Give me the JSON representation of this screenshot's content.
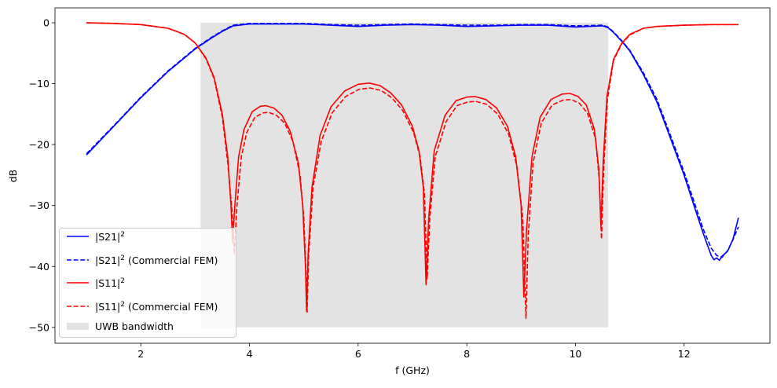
{
  "chart_data": {
    "type": "line",
    "title": "",
    "xlabel": "f (GHz)",
    "ylabel": "dB",
    "xlim": [
      0.42,
      13.58
    ],
    "ylim": [
      -52.6,
      2.45
    ],
    "xticks": [
      2,
      4,
      6,
      8,
      10,
      12
    ],
    "yticks": [
      0,
      -10,
      -20,
      -30,
      -40,
      -50
    ],
    "grid": false,
    "legend_placement": "lower-left",
    "shaded_region": {
      "name": "UWB bandwidth",
      "x": [
        3.1,
        10.6
      ],
      "y": [
        -50,
        0
      ],
      "color": "#e3e3e3"
    },
    "series": [
      {
        "name": "|S21|",
        "sup": "2",
        "color": "#0000ff",
        "style": "solid",
        "x": [
          1,
          1.5,
          2,
          2.5,
          3,
          3.3,
          3.5,
          3.7,
          4,
          4.5,
          5,
          5.5,
          6,
          6.5,
          7,
          7.5,
          8,
          8.5,
          9,
          9.5,
          10,
          10.5,
          10.6,
          10.7,
          10.85,
          11,
          11.25,
          11.5,
          11.75,
          12,
          12.2,
          12.35,
          12.5,
          12.55,
          12.6,
          12.65,
          12.7,
          12.8,
          12.9,
          13
        ],
        "y": [
          -21.7,
          -17,
          -12.3,
          -8,
          -4.3,
          -2.5,
          -1.4,
          -0.5,
          -0.2,
          -0.2,
          -0.2,
          -0.4,
          -0.6,
          -0.4,
          -0.3,
          -0.4,
          -0.6,
          -0.5,
          -0.4,
          -0.4,
          -0.7,
          -0.5,
          -0.8,
          -1.6,
          -3,
          -4.6,
          -8.5,
          -13,
          -19,
          -25,
          -30.5,
          -34.5,
          -38.2,
          -38.9,
          -38.6,
          -39,
          -38.3,
          -37.5,
          -35.5,
          -32
        ]
      },
      {
        "name": "|S21|",
        "sup": "2",
        "suffix": " (Commercial FEM)",
        "color": "#0000ff",
        "style": "dashed",
        "x": [
          1,
          1.5,
          2,
          2.5,
          3,
          3.3,
          3.5,
          3.7,
          4,
          4.5,
          5,
          5.5,
          6,
          6.5,
          7,
          7.5,
          8,
          8.5,
          9,
          9.5,
          10,
          10.5,
          10.6,
          10.7,
          10.85,
          11,
          11.25,
          11.5,
          11.75,
          12,
          12.2,
          12.35,
          12.5,
          12.6,
          12.7,
          12.8,
          12.9,
          13
        ],
        "y": [
          -21.5,
          -16.9,
          -12.2,
          -7.9,
          -4.2,
          -2.4,
          -1.3,
          -0.4,
          -0.1,
          -0.1,
          -0.1,
          -0.3,
          -0.4,
          -0.3,
          -0.2,
          -0.3,
          -0.4,
          -0.4,
          -0.3,
          -0.3,
          -0.5,
          -0.4,
          -0.7,
          -1.5,
          -2.9,
          -4.5,
          -8.2,
          -12.6,
          -18.5,
          -24.5,
          -29.8,
          -33.8,
          -37,
          -38.2,
          -38.5,
          -37.4,
          -35.6,
          -33.5
        ]
      },
      {
        "name": "|S11|",
        "sup": "2",
        "color": "#ff0000",
        "style": "solid",
        "x": [
          1,
          1.5,
          2,
          2.5,
          2.8,
          3,
          3.2,
          3.35,
          3.5,
          3.6,
          3.66,
          3.69,
          3.73,
          3.8,
          3.9,
          4.05,
          4.2,
          4.3,
          4.45,
          4.6,
          4.75,
          4.9,
          4.98,
          5.03,
          5.05,
          5.08,
          5.15,
          5.3,
          5.5,
          5.75,
          6,
          6.2,
          6.4,
          6.6,
          6.8,
          7,
          7.12,
          7.2,
          7.25,
          7.3,
          7.4,
          7.6,
          7.8,
          8,
          8.15,
          8.35,
          8.55,
          8.75,
          8.9,
          9.0,
          9.05,
          9.1,
          9.2,
          9.35,
          9.55,
          9.75,
          9.9,
          10.05,
          10.2,
          10.35,
          10.43,
          10.47,
          10.51,
          10.58,
          10.7,
          10.85,
          11,
          11.25,
          11.5,
          12,
          12.5,
          13
        ],
        "y": [
          0,
          -0.1,
          -0.3,
          -0.9,
          -1.9,
          -3.3,
          -5.8,
          -9,
          -15,
          -22,
          -30,
          -36,
          -30,
          -22,
          -17.5,
          -14.6,
          -13.7,
          -13.6,
          -14,
          -15.2,
          -17.8,
          -23,
          -30,
          -40,
          -47.3,
          -38,
          -27,
          -18.5,
          -13.8,
          -11.2,
          -10.1,
          -9.9,
          -10.3,
          -11.5,
          -13.5,
          -17,
          -21,
          -27,
          -43,
          -32,
          -21,
          -15.2,
          -12.8,
          -12.2,
          -12.1,
          -12.6,
          -14,
          -17,
          -22,
          -30,
          -45,
          -34,
          -22,
          -15.5,
          -12.6,
          -11.7,
          -11.6,
          -12.1,
          -13.5,
          -17.5,
          -24,
          -33.5,
          -23,
          -12,
          -6,
          -3.4,
          -1.9,
          -0.9,
          -0.6,
          -0.4,
          -0.3,
          -0.3
        ]
      },
      {
        "name": "|S11|",
        "sup": "2",
        "suffix": " (Commercial FEM)",
        "color": "#ff0000",
        "style": "dashed",
        "x": [
          1,
          1.5,
          2,
          2.5,
          2.8,
          3,
          3.2,
          3.35,
          3.5,
          3.6,
          3.68,
          3.72,
          3.77,
          3.85,
          3.95,
          4.1,
          4.25,
          4.35,
          4.5,
          4.65,
          4.8,
          4.93,
          5.0,
          5.04,
          5.06,
          5.09,
          5.17,
          5.32,
          5.52,
          5.77,
          6.02,
          6.22,
          6.42,
          6.62,
          6.82,
          7.02,
          7.14,
          7.22,
          7.27,
          7.32,
          7.42,
          7.62,
          7.82,
          8.02,
          8.17,
          8.37,
          8.57,
          8.77,
          8.92,
          9.03,
          9.09,
          9.13,
          9.22,
          9.37,
          9.57,
          9.77,
          9.92,
          10.07,
          10.22,
          10.37,
          10.44,
          10.48,
          10.52,
          10.59,
          10.7,
          10.85,
          11,
          11.25,
          11.5,
          12,
          12.5,
          13
        ],
        "y": [
          0,
          -0.1,
          -0.3,
          -0.9,
          -1.9,
          -3.3,
          -5.9,
          -9.2,
          -15.5,
          -23,
          -31,
          -38,
          -30,
          -22,
          -18,
          -15.5,
          -14.8,
          -14.7,
          -15.2,
          -16.5,
          -19.5,
          -25,
          -32,
          -41,
          -47.5,
          -38,
          -27,
          -19.5,
          -14.8,
          -12.1,
          -10.9,
          -10.7,
          -11.1,
          -12.3,
          -14.4,
          -18,
          -22,
          -28,
          -42,
          -32,
          -22,
          -16.2,
          -13.6,
          -13,
          -12.9,
          -13.4,
          -15,
          -18.3,
          -23.5,
          -32,
          -48.5,
          -35,
          -23,
          -16.5,
          -13.5,
          -12.7,
          -12.6,
          -13.2,
          -14.8,
          -19,
          -26,
          -35.5,
          -24,
          -12.5,
          -6.2,
          -3.5,
          -2,
          -0.9,
          -0.6,
          -0.4,
          -0.3,
          -0.3
        ]
      }
    ]
  }
}
